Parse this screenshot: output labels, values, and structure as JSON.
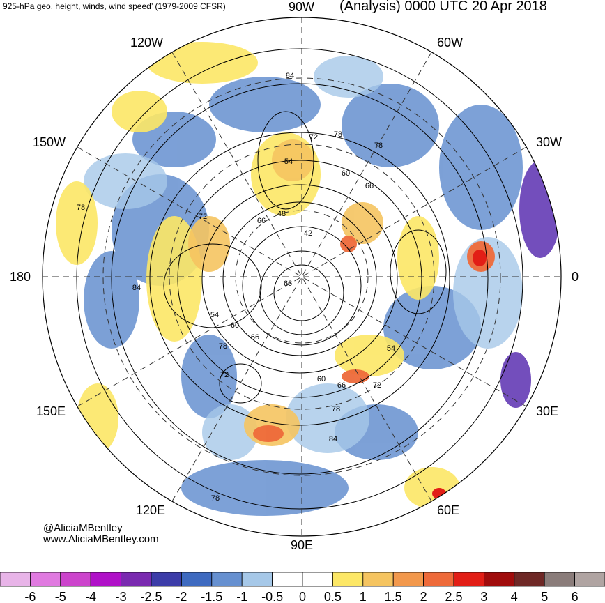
{
  "header": {
    "left": "925-hPa geo. height, winds, wind speed’ (1979-2009 CFSR)",
    "right": "(Analysis) 0000 UTC 20 Apr 2018"
  },
  "longitude_labels": {
    "w90": "90W",
    "w120": "120W",
    "w60": "60W",
    "w150": "150W",
    "w30": "30W",
    "d180": "180",
    "d0": "0",
    "e150": "150E",
    "e30": "30E",
    "e120": "120E",
    "e60": "60E",
    "e90": "90E"
  },
  "contour_labels": [
    "84",
    "72",
    "78",
    "78",
    "54",
    "60",
    "66",
    "66",
    "48",
    "42",
    "72",
    "78",
    "84",
    "66",
    "54",
    "60",
    "66",
    "78",
    "72",
    "60",
    "66",
    "72",
    "78",
    "84",
    "54",
    "78"
  ],
  "credits": {
    "handle": "@AliciaMBentley",
    "site": "www.AliciaMBentley.com"
  },
  "colorbar": {
    "ticks": [
      "-6",
      "-5",
      "-4",
      "-3",
      "-2.5",
      "-2",
      "-1.5",
      "-1",
      "-0.5",
      "0",
      "0.5",
      "1",
      "1.5",
      "2",
      "2.5",
      "3",
      "4",
      "5",
      "6"
    ],
    "colors": [
      "#e8b4e8",
      "#e07ae0",
      "#cc44cc",
      "#b010c8",
      "#7a2ab0",
      "#3c3ca8",
      "#3e6ac0",
      "#6690d0",
      "#a6c8e8",
      "#ffffff",
      "#ffffff",
      "#fce766",
      "#f5c460",
      "#f2984c",
      "#ee6a3a",
      "#e21e16",
      "#a00c0c",
      "#6e2826",
      "#8a7c7a",
      "#b0a4a2"
    ]
  }
}
